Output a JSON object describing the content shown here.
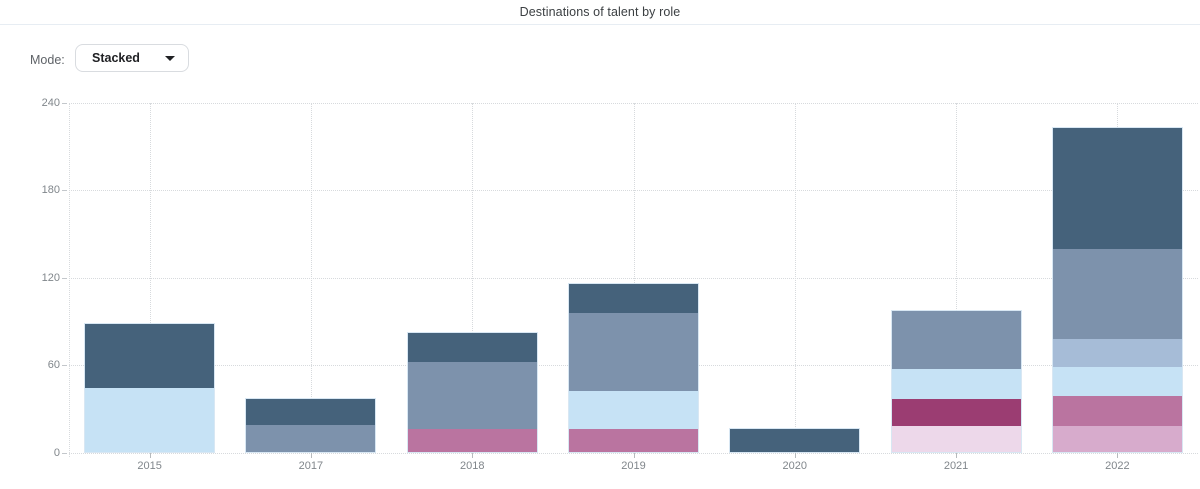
{
  "header": {
    "title": "Destinations of talent by role"
  },
  "controls": {
    "mode_label": "Mode:",
    "mode_value": "Stacked"
  },
  "chart_data": {
    "type": "bar",
    "stacked": true,
    "title": "Destinations of talent by role",
    "categories": [
      "2015",
      "2017",
      "2018",
      "2019",
      "2020",
      "2021",
      "2022"
    ],
    "series": [
      {
        "name": "pale-pink",
        "color": "#edd8ea",
        "values": [
          0,
          0,
          0,
          0,
          0,
          18,
          0
        ]
      },
      {
        "name": "light-plum",
        "color": "#d7abcc",
        "values": [
          0,
          0,
          0,
          0,
          0,
          0,
          18
        ]
      },
      {
        "name": "dark-magenta",
        "color": "#9b3d72",
        "values": [
          0,
          0,
          0,
          0,
          0,
          19,
          0
        ]
      },
      {
        "name": "mauve",
        "color": "#ba74a0",
        "values": [
          0,
          0,
          16,
          16,
          0,
          0,
          21
        ]
      },
      {
        "name": "pale-blue",
        "color": "#c6e2f5",
        "values": [
          44,
          0,
          0,
          26,
          0,
          20,
          20
        ]
      },
      {
        "name": "light-steel-blue",
        "color": "#a6bcd7",
        "values": [
          0,
          0,
          0,
          0,
          0,
          0,
          19
        ]
      },
      {
        "name": "slate-blue",
        "color": "#7d92ac",
        "values": [
          0,
          19,
          46,
          54,
          0,
          40,
          62
        ]
      },
      {
        "name": "dark-blue",
        "color": "#45627b",
        "values": [
          44,
          18,
          20,
          20,
          16,
          0,
          83
        ]
      }
    ],
    "stack_order": "bottom-to-top as listed",
    "totals": [
      88,
      37,
      82,
      116,
      16,
      97,
      223
    ],
    "ylim": [
      0,
      240
    ],
    "yticks": [
      0,
      60,
      120,
      180,
      240
    ],
    "xlabel": "",
    "ylabel": "",
    "grid": "dotted",
    "legend": "none",
    "axis_label_color": "#80868b"
  }
}
